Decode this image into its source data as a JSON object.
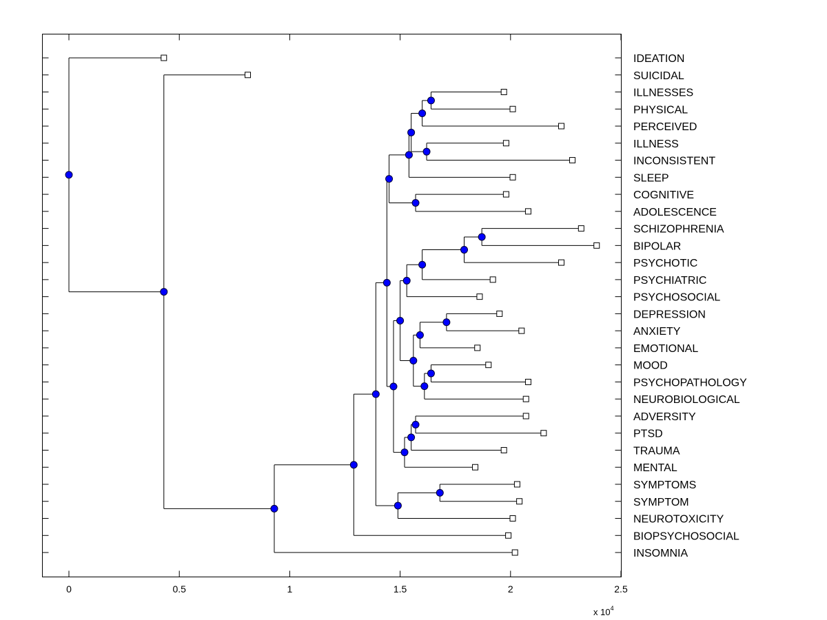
{
  "chart_data": {
    "type": "dendrogram",
    "title": "",
    "xlabel": "",
    "ylabel": "",
    "x_scale_label": "x 10",
    "x_scale_exponent": "4",
    "xlim": [
      -0.12,
      2.5
    ],
    "xticks": [
      0,
      0.5,
      1,
      1.5,
      2,
      2.5
    ],
    "xtick_labels": [
      "0",
      "0.5",
      "1",
      "1.5",
      "2",
      "2.5"
    ],
    "grid": false,
    "node_marker_color": "#0000ff",
    "leaf_marker": "square",
    "leaves": [
      {
        "label": "IDEATION",
        "x": 0.43
      },
      {
        "label": "SUICIDAL",
        "x": 0.81
      },
      {
        "label": "ILLNESSES",
        "x": 1.97
      },
      {
        "label": "PHYSICAL",
        "x": 2.01
      },
      {
        "label": "PERCEIVED",
        "x": 2.23
      },
      {
        "label": "ILLNESS",
        "x": 1.98
      },
      {
        "label": "INCONSISTENT",
        "x": 2.28
      },
      {
        "label": "SLEEP",
        "x": 2.01
      },
      {
        "label": "COGNITIVE",
        "x": 1.98
      },
      {
        "label": "ADOLESCENCE",
        "x": 2.08
      },
      {
        "label": "SCHIZOPHRENIA",
        "x": 2.32
      },
      {
        "label": "BIPOLAR",
        "x": 2.39
      },
      {
        "label": "PSYCHOTIC",
        "x": 2.23
      },
      {
        "label": "PSYCHIATRIC",
        "x": 1.92
      },
      {
        "label": "PSYCHOSOCIAL",
        "x": 1.86
      },
      {
        "label": "DEPRESSION",
        "x": 1.95
      },
      {
        "label": "ANXIETY",
        "x": 2.05
      },
      {
        "label": "EMOTIONAL",
        "x": 1.85
      },
      {
        "label": "MOOD",
        "x": 1.9
      },
      {
        "label": "PSYCHOPATHOLOGY",
        "x": 2.08
      },
      {
        "label": "NEUROBIOLOGICAL",
        "x": 2.07
      },
      {
        "label": "ADVERSITY",
        "x": 2.07
      },
      {
        "label": "PTSD",
        "x": 2.15
      },
      {
        "label": "TRAUMA",
        "x": 1.97
      },
      {
        "label": "MENTAL",
        "x": 1.84
      },
      {
        "label": "SYMPTOMS",
        "x": 2.03
      },
      {
        "label": "SYMPTOM",
        "x": 2.04
      },
      {
        "label": "NEUROTOXICITY",
        "x": 2.01
      },
      {
        "label": "BIOPSYCHOSOCIAL",
        "x": 1.99
      },
      {
        "label": "INSOMNIA",
        "x": 2.02
      }
    ],
    "nodes": [
      {
        "id": "n_root",
        "x": 0.0,
        "children": [
          "L0",
          "n_a"
        ]
      },
      {
        "id": "n_a",
        "x": 0.43,
        "children": [
          "L1",
          "n_b"
        ]
      },
      {
        "id": "n_b",
        "x": 0.93,
        "children": [
          "n_c",
          "L29"
        ]
      },
      {
        "id": "n_c",
        "x": 1.29,
        "children": [
          "n_d",
          "L28"
        ]
      },
      {
        "id": "n_d",
        "x": 1.39,
        "children": [
          "n_e",
          "n_f"
        ]
      },
      {
        "id": "n_f",
        "x": 1.49,
        "children": [
          "n_g",
          "L27"
        ]
      },
      {
        "id": "n_g",
        "x": 1.68,
        "children": [
          "L25",
          "L26"
        ]
      },
      {
        "id": "n_e",
        "x": 1.44,
        "children": [
          "n_h",
          "n_i"
        ]
      },
      {
        "id": "n_h",
        "x": 1.45,
        "children": [
          "n_j",
          "n_k"
        ]
      },
      {
        "id": "n_k",
        "x": 1.57,
        "children": [
          "L8",
          "L9"
        ]
      },
      {
        "id": "n_j",
        "x": 1.54,
        "children": [
          "n_l",
          "L7"
        ]
      },
      {
        "id": "n_l",
        "x": 1.55,
        "children": [
          "n_m",
          "n_n"
        ]
      },
      {
        "id": "n_n",
        "x": 1.62,
        "children": [
          "L5",
          "L6"
        ]
      },
      {
        "id": "n_m",
        "x": 1.6,
        "children": [
          "n_o",
          "L4"
        ]
      },
      {
        "id": "n_o",
        "x": 1.64,
        "children": [
          "L2",
          "L3"
        ]
      },
      {
        "id": "n_i",
        "x": 1.47,
        "children": [
          "n_p",
          "n_q"
        ]
      },
      {
        "id": "n_p",
        "x": 1.5,
        "children": [
          "n_r",
          "n_s"
        ]
      },
      {
        "id": "n_r",
        "x": 1.53,
        "children": [
          "n_t",
          "L14"
        ]
      },
      {
        "id": "n_t",
        "x": 1.6,
        "children": [
          "n_u",
          "L13"
        ]
      },
      {
        "id": "n_u",
        "x": 1.79,
        "children": [
          "n_v",
          "L12"
        ]
      },
      {
        "id": "n_v",
        "x": 1.87,
        "children": [
          "L10",
          "L11"
        ]
      },
      {
        "id": "n_s",
        "x": 1.56,
        "children": [
          "n_w",
          "n_x"
        ]
      },
      {
        "id": "n_w",
        "x": 1.59,
        "children": [
          "n_y",
          "L17"
        ]
      },
      {
        "id": "n_y",
        "x": 1.71,
        "children": [
          "L15",
          "L16"
        ]
      },
      {
        "id": "n_x",
        "x": 1.61,
        "children": [
          "n_z",
          "L20"
        ]
      },
      {
        "id": "n_z",
        "x": 1.64,
        "children": [
          "L18",
          "L19"
        ]
      },
      {
        "id": "n_q",
        "x": 1.52,
        "children": [
          "n_aa",
          "L24"
        ]
      },
      {
        "id": "n_aa",
        "x": 1.55,
        "children": [
          "n_ab",
          "L23"
        ]
      },
      {
        "id": "n_ab",
        "x": 1.57,
        "children": [
          "L21",
          "L22"
        ]
      }
    ]
  }
}
